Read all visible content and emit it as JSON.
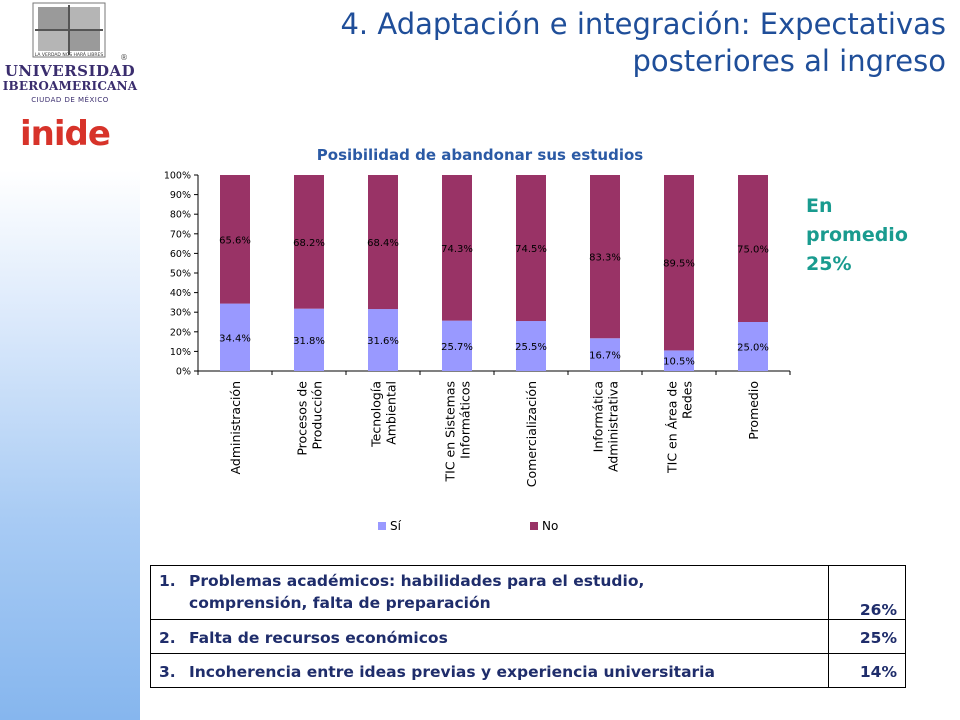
{
  "branding": {
    "motto": "LA VERDAD NOS HARÁ LIBRES",
    "university_line1": "UNIVERSIDAD",
    "university_line2": "IBEROAMERICANA",
    "university_line3": "CIUDAD DE MÉXICO",
    "registered_mark": "®",
    "inide_logo": "inide",
    "brand_colors": {
      "ibero": "#3a2d6e",
      "inide_red": "#d7332a",
      "inide_navy": "#1c1c5c"
    }
  },
  "slide_title_line1": "4. Adaptación e integración: Expectativas",
  "slide_title_line2": "posteriores al ingreso",
  "callout": {
    "line1": "En",
    "line2": "promedio",
    "line3": "25%"
  },
  "chart_data": {
    "type": "bar",
    "stacked": true,
    "title": "Posibilidad de abandonar sus estudios",
    "categories": [
      [
        "Administración"
      ],
      [
        "Procesos de",
        "Producción"
      ],
      [
        "Tecnología",
        "Ambiental"
      ],
      [
        "TIC en Sistemas",
        "Informáticos"
      ],
      [
        "Comercialización"
      ],
      [
        "Informática",
        "Administrativa"
      ],
      [
        "TIC en Área de",
        "Redes"
      ],
      [
        "Promedio"
      ]
    ],
    "series": [
      {
        "name": "Sí",
        "color": "#9999ff",
        "values": [
          34.4,
          31.8,
          31.6,
          25.7,
          25.5,
          16.7,
          10.5,
          25.0
        ],
        "labels": [
          "34.4%",
          "31.8%",
          "31.6%",
          "25.7%",
          "25.5%",
          "16.7%",
          "10.5%",
          "25.0%"
        ]
      },
      {
        "name": "No",
        "color": "#993366",
        "values": [
          65.6,
          68.2,
          68.4,
          74.3,
          74.5,
          83.3,
          89.5,
          75.0
        ],
        "labels": [
          "65.6%",
          "68.2%",
          "68.4%",
          "74.3%",
          "74.5%",
          "83.3%",
          "89.5%",
          "75.0%"
        ]
      }
    ],
    "y_ticks": [
      "0%",
      "10%",
      "20%",
      "30%",
      "40%",
      "50%",
      "60%",
      "70%",
      "80%",
      "90%",
      "100%"
    ],
    "ylim": [
      0,
      100
    ],
    "legend_position": "bottom",
    "grid": false
  },
  "reasons_table": [
    {
      "num": "1.",
      "text_line1": "Problemas académicos: habilidades para el estudio,",
      "text_line2": "comprensión, falta de preparación",
      "pct": "26%"
    },
    {
      "num": "2.",
      "text_line1": "Falta de recursos económicos",
      "pct": "25%"
    },
    {
      "num": "3.",
      "text_line1": "Incoherencia entre ideas previas y experiencia universitaria",
      "pct": "14%"
    }
  ]
}
